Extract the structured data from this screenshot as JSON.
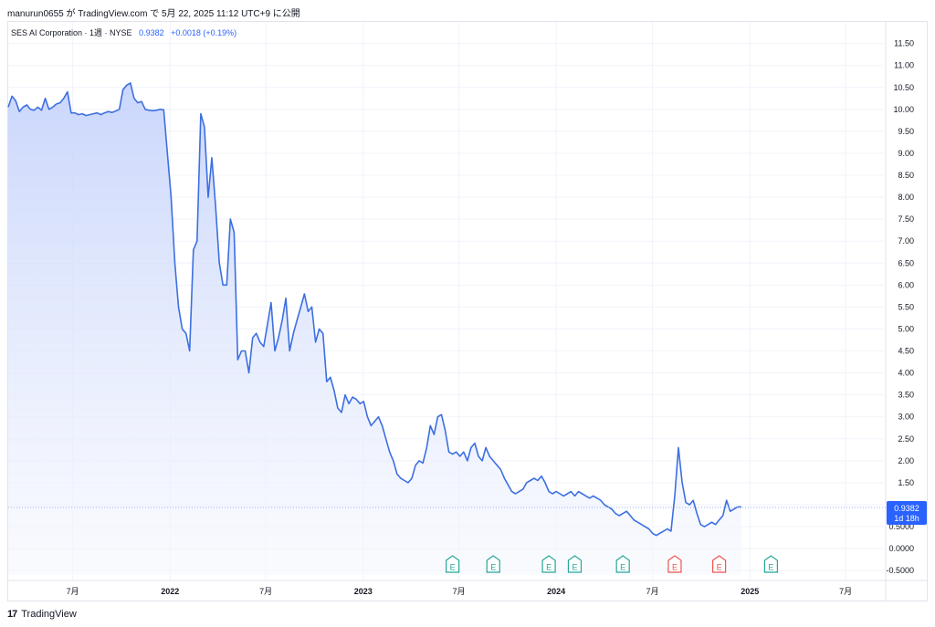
{
  "header": {
    "published_text": "manurun0655 が TradingView.com で 5月 22, 2025 11:12 UTC+9 に公開"
  },
  "legend": {
    "symbol": "SES AI Corporation · 1週 · NYSE",
    "price": "0.9382",
    "change": "+0.0018 (+0.19%)"
  },
  "last_price_label": {
    "price": "0.9382",
    "countdown": "1d 18h"
  },
  "footer": {
    "brand": "TradingView",
    "logo_text": "17"
  },
  "colors": {
    "line": "#3d6fe0",
    "fill_top": "#c4d2fb",
    "fill_bottom": "#f6f8fe",
    "earnings_beat": "#26a69a",
    "earnings_miss": "#ef5350",
    "price_label_bg": "#2962ff"
  },
  "chart_data": {
    "type": "area",
    "title": "SES AI Corporation · 1週 · NYSE",
    "xlabel": "",
    "ylabel": "",
    "ylim": [
      -0.6,
      11.7
    ],
    "xlim": [
      "2021-03-01",
      "2025-09-01"
    ],
    "y_ticks": [
      "11.50",
      "11.00",
      "10.50",
      "10.00",
      "9.50",
      "9.00",
      "8.50",
      "8.00",
      "7.50",
      "7.00",
      "6.50",
      "6.00",
      "5.50",
      "5.00",
      "4.50",
      "4.00",
      "3.50",
      "3.00",
      "2.50",
      "2.00",
      "1.50",
      "1.00",
      "0.5000",
      "0.0000",
      "-0.5000"
    ],
    "x_ticks": [
      {
        "date": "2021-07-01",
        "label": "7月",
        "bold": false
      },
      {
        "date": "2022-01-01",
        "label": "2022",
        "bold": true
      },
      {
        "date": "2022-07-01",
        "label": "7月",
        "bold": false
      },
      {
        "date": "2023-01-01",
        "label": "2023",
        "bold": true
      },
      {
        "date": "2023-07-01",
        "label": "7月",
        "bold": false
      },
      {
        "date": "2024-01-01",
        "label": "2024",
        "bold": true
      },
      {
        "date": "2024-07-01",
        "label": "7月",
        "bold": false
      },
      {
        "date": "2025-01-01",
        "label": "2025",
        "bold": true
      },
      {
        "date": "2025-07-01",
        "label": "7月",
        "bold": false
      }
    ],
    "series": [
      {
        "points": [
          [
            "2021-03-01",
            10.05
          ],
          [
            "2021-03-08",
            10.3
          ],
          [
            "2021-03-15",
            10.2
          ],
          [
            "2021-03-22",
            9.95
          ],
          [
            "2021-03-29",
            10.05
          ],
          [
            "2021-04-05",
            10.1
          ],
          [
            "2021-04-12",
            10.0
          ],
          [
            "2021-04-19",
            9.98
          ],
          [
            "2021-04-26",
            10.05
          ],
          [
            "2021-05-03",
            9.98
          ],
          [
            "2021-05-10",
            10.25
          ],
          [
            "2021-05-17",
            10.0
          ],
          [
            "2021-05-24",
            10.05
          ],
          [
            "2021-05-31",
            10.12
          ],
          [
            "2021-06-07",
            10.15
          ],
          [
            "2021-06-14",
            10.25
          ],
          [
            "2021-06-21",
            10.4
          ],
          [
            "2021-06-28",
            9.92
          ],
          [
            "2021-07-05",
            9.92
          ],
          [
            "2021-07-12",
            9.88
          ],
          [
            "2021-07-19",
            9.9
          ],
          [
            "2021-07-26",
            9.86
          ],
          [
            "2021-08-02",
            9.88
          ],
          [
            "2021-08-09",
            9.9
          ],
          [
            "2021-08-16",
            9.92
          ],
          [
            "2021-08-23",
            9.88
          ],
          [
            "2021-08-30",
            9.92
          ],
          [
            "2021-09-06",
            9.95
          ],
          [
            "2021-09-13",
            9.93
          ],
          [
            "2021-09-20",
            9.96
          ],
          [
            "2021-09-27",
            10.0
          ],
          [
            "2021-10-04",
            10.45
          ],
          [
            "2021-10-11",
            10.55
          ],
          [
            "2021-10-18",
            10.6
          ],
          [
            "2021-10-25",
            10.25
          ],
          [
            "2021-11-01",
            10.15
          ],
          [
            "2021-11-08",
            10.18
          ],
          [
            "2021-11-15",
            10.0
          ],
          [
            "2021-11-22",
            9.98
          ],
          [
            "2021-11-29",
            9.97
          ],
          [
            "2021-12-06",
            9.98
          ],
          [
            "2021-12-13",
            10.0
          ],
          [
            "2021-12-20",
            9.99
          ],
          [
            "2022-01-03",
            8.0
          ],
          [
            "2022-01-10",
            6.5
          ],
          [
            "2022-01-17",
            5.5
          ],
          [
            "2022-01-24",
            5.0
          ],
          [
            "2022-01-31",
            4.9
          ],
          [
            "2022-02-07",
            4.5
          ],
          [
            "2022-02-14",
            6.8
          ],
          [
            "2022-02-21",
            7.0
          ],
          [
            "2022-02-28",
            9.9
          ],
          [
            "2022-03-07",
            9.6
          ],
          [
            "2022-03-14",
            8.0
          ],
          [
            "2022-03-21",
            8.9
          ],
          [
            "2022-03-28",
            7.8
          ],
          [
            "2022-04-04",
            6.5
          ],
          [
            "2022-04-11",
            6.0
          ],
          [
            "2022-04-18",
            6.0
          ],
          [
            "2022-04-25",
            7.5
          ],
          [
            "2022-05-02",
            7.2
          ],
          [
            "2022-05-09",
            4.3
          ],
          [
            "2022-05-16",
            4.5
          ],
          [
            "2022-05-23",
            4.5
          ],
          [
            "2022-05-30",
            4.0
          ],
          [
            "2022-06-06",
            4.8
          ],
          [
            "2022-06-13",
            4.9
          ],
          [
            "2022-06-20",
            4.7
          ],
          [
            "2022-06-27",
            4.6
          ],
          [
            "2022-07-04",
            5.1
          ],
          [
            "2022-07-11",
            5.6
          ],
          [
            "2022-07-18",
            4.5
          ],
          [
            "2022-07-25",
            4.8
          ],
          [
            "2022-08-01",
            5.2
          ],
          [
            "2022-08-08",
            5.7
          ],
          [
            "2022-08-15",
            4.5
          ],
          [
            "2022-08-22",
            4.9
          ],
          [
            "2022-08-29",
            5.2
          ],
          [
            "2022-09-05",
            5.5
          ],
          [
            "2022-09-12",
            5.8
          ],
          [
            "2022-09-19",
            5.4
          ],
          [
            "2022-09-26",
            5.5
          ],
          [
            "2022-10-03",
            4.7
          ],
          [
            "2022-10-10",
            5.0
          ],
          [
            "2022-10-17",
            4.9
          ],
          [
            "2022-10-24",
            3.8
          ],
          [
            "2022-10-31",
            3.9
          ],
          [
            "2022-11-07",
            3.6
          ],
          [
            "2022-11-14",
            3.2
          ],
          [
            "2022-11-21",
            3.1
          ],
          [
            "2022-11-28",
            3.5
          ],
          [
            "2022-12-05",
            3.3
          ],
          [
            "2022-12-12",
            3.45
          ],
          [
            "2022-12-19",
            3.4
          ],
          [
            "2022-12-26",
            3.3
          ],
          [
            "2023-01-02",
            3.35
          ],
          [
            "2023-01-09",
            3.0
          ],
          [
            "2023-01-16",
            2.8
          ],
          [
            "2023-01-23",
            2.9
          ],
          [
            "2023-01-30",
            3.0
          ],
          [
            "2023-02-06",
            2.8
          ],
          [
            "2023-02-13",
            2.5
          ],
          [
            "2023-02-20",
            2.2
          ],
          [
            "2023-02-27",
            2.0
          ],
          [
            "2023-03-06",
            1.7
          ],
          [
            "2023-03-13",
            1.6
          ],
          [
            "2023-03-20",
            1.55
          ],
          [
            "2023-03-27",
            1.5
          ],
          [
            "2023-04-03",
            1.6
          ],
          [
            "2023-04-10",
            1.9
          ],
          [
            "2023-04-17",
            2.0
          ],
          [
            "2023-04-24",
            1.95
          ],
          [
            "2023-05-01",
            2.3
          ],
          [
            "2023-05-08",
            2.8
          ],
          [
            "2023-05-15",
            2.6
          ],
          [
            "2023-05-22",
            3.0
          ],
          [
            "2023-05-29",
            3.05
          ],
          [
            "2023-06-05",
            2.7
          ],
          [
            "2023-06-12",
            2.2
          ],
          [
            "2023-06-19",
            2.15
          ],
          [
            "2023-06-26",
            2.2
          ],
          [
            "2023-07-03",
            2.1
          ],
          [
            "2023-07-10",
            2.2
          ],
          [
            "2023-07-17",
            2.0
          ],
          [
            "2023-07-24",
            2.3
          ],
          [
            "2023-07-31",
            2.4
          ],
          [
            "2023-08-07",
            2.1
          ],
          [
            "2023-08-14",
            2.0
          ],
          [
            "2023-08-21",
            2.3
          ],
          [
            "2023-08-28",
            2.1
          ],
          [
            "2023-09-04",
            2.0
          ],
          [
            "2023-09-11",
            1.9
          ],
          [
            "2023-09-18",
            1.8
          ],
          [
            "2023-09-25",
            1.6
          ],
          [
            "2023-10-02",
            1.45
          ],
          [
            "2023-10-09",
            1.3
          ],
          [
            "2023-10-16",
            1.25
          ],
          [
            "2023-10-23",
            1.3
          ],
          [
            "2023-10-30",
            1.35
          ],
          [
            "2023-11-06",
            1.5
          ],
          [
            "2023-11-13",
            1.55
          ],
          [
            "2023-11-20",
            1.6
          ],
          [
            "2023-11-27",
            1.55
          ],
          [
            "2023-12-04",
            1.65
          ],
          [
            "2023-12-11",
            1.5
          ],
          [
            "2023-12-18",
            1.3
          ],
          [
            "2023-12-25",
            1.25
          ],
          [
            "2024-01-01",
            1.3
          ],
          [
            "2024-01-08",
            1.25
          ],
          [
            "2024-01-15",
            1.2
          ],
          [
            "2024-01-22",
            1.25
          ],
          [
            "2024-01-29",
            1.3
          ],
          [
            "2024-02-05",
            1.2
          ],
          [
            "2024-02-12",
            1.3
          ],
          [
            "2024-02-19",
            1.25
          ],
          [
            "2024-02-26",
            1.2
          ],
          [
            "2024-03-04",
            1.15
          ],
          [
            "2024-03-11",
            1.2
          ],
          [
            "2024-03-18",
            1.15
          ],
          [
            "2024-03-25",
            1.1
          ],
          [
            "2024-04-01",
            1.0
          ],
          [
            "2024-04-08",
            0.95
          ],
          [
            "2024-04-15",
            0.9
          ],
          [
            "2024-04-22",
            0.8
          ],
          [
            "2024-04-29",
            0.75
          ],
          [
            "2024-05-06",
            0.8
          ],
          [
            "2024-05-13",
            0.85
          ],
          [
            "2024-05-20",
            0.75
          ],
          [
            "2024-05-27",
            0.65
          ],
          [
            "2024-06-03",
            0.6
          ],
          [
            "2024-06-10",
            0.55
          ],
          [
            "2024-06-17",
            0.5
          ],
          [
            "2024-06-24",
            0.45
          ],
          [
            "2024-07-01",
            0.35
          ],
          [
            "2024-07-08",
            0.3
          ],
          [
            "2024-07-15",
            0.35
          ],
          [
            "2024-07-22",
            0.4
          ],
          [
            "2024-07-29",
            0.45
          ],
          [
            "2024-08-05",
            0.4
          ],
          [
            "2024-08-12",
            1.2
          ],
          [
            "2024-08-19",
            2.3
          ],
          [
            "2024-08-26",
            1.5
          ],
          [
            "2024-09-02",
            1.05
          ],
          [
            "2024-09-09",
            1.0
          ],
          [
            "2024-09-16",
            1.1
          ],
          [
            "2024-09-23",
            0.8
          ],
          [
            "2024-09-30",
            0.55
          ],
          [
            "2024-10-07",
            0.5
          ],
          [
            "2024-10-14",
            0.55
          ],
          [
            "2024-10-21",
            0.6
          ],
          [
            "2024-10-28",
            0.55
          ],
          [
            "2024-11-04",
            0.65
          ],
          [
            "2024-11-11",
            0.75
          ],
          [
            "2024-11-18",
            1.1
          ],
          [
            "2024-11-25",
            0.85
          ],
          [
            "2024-12-02",
            0.9
          ],
          [
            "2024-12-09",
            0.95
          ],
          [
            "2024-12-16",
            0.95
          ]
        ]
      }
    ],
    "last_value": 0.9382,
    "earnings_markers": [
      {
        "date": "2023-06-19",
        "label": "E",
        "kind": "beat"
      },
      {
        "date": "2023-09-04",
        "label": "E",
        "kind": "beat"
      },
      {
        "date": "2023-12-18",
        "label": "E",
        "kind": "beat"
      },
      {
        "date": "2024-02-05",
        "label": "E",
        "kind": "beat"
      },
      {
        "date": "2024-05-06",
        "label": "E",
        "kind": "beat"
      },
      {
        "date": "2024-08-12",
        "label": "E",
        "kind": "miss"
      },
      {
        "date": "2024-11-04",
        "label": "E",
        "kind": "miss"
      },
      {
        "date": "2025-02-10",
        "label": "E",
        "kind": "beat"
      }
    ],
    "grid": true,
    "legend_position": "top-left"
  }
}
